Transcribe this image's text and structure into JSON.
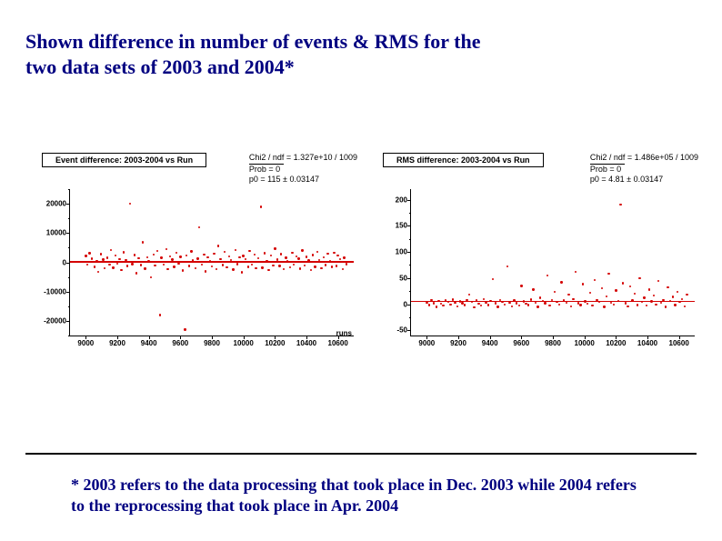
{
  "title": "Shown difference in number of events & RMS for the two data sets of 2003 and 2004*",
  "footnote": "* 2003 refers to the data processing that took place in Dec. 2003 while 2004 refers to the reprocessing that took place in Apr. 2004",
  "title_color": "#000080",
  "footnote_color": "#000080",
  "title_fontsize": 22,
  "footnote_fontsize": 18,
  "page_bg": "#ffffff",
  "rule_color": "#000000",
  "panels": [
    {
      "id": "left",
      "type": "scatter",
      "panel_title": "Event difference: 2003-2004 vs Run",
      "stats": {
        "chi2_ndf_label": "Chi2 / ndf",
        "chi2_ndf_value": "= 1.327e+10 / 1009",
        "prob_label": "Prob",
        "prob_value": "=     0",
        "p0_label": "p0",
        "p0_value": "= 115 ± 0.03147"
      },
      "xlim": [
        8900,
        10700
      ],
      "ylim": [
        -25000,
        25000
      ],
      "xticks": [
        9000,
        9200,
        9400,
        9600,
        9800,
        10000,
        10200,
        10400,
        10600
      ],
      "yticks": [
        -20000,
        -10000,
        0,
        10000,
        20000
      ],
      "yticks_minor": [
        -25000,
        -15000,
        -5000,
        5000,
        15000,
        25000
      ],
      "xlabel": "runs",
      "marker_color": "#d40000",
      "marker_size": 2.4,
      "fit_line_y": 115,
      "fit_line_color": "#d40000",
      "fit_line_width": 1.5,
      "points": [
        [
          9000,
          2200
        ],
        [
          9010,
          -800
        ],
        [
          9025,
          3100
        ],
        [
          9040,
          1200
        ],
        [
          9055,
          -1500
        ],
        [
          9070,
          500
        ],
        [
          9080,
          -3200
        ],
        [
          9095,
          2800
        ],
        [
          9110,
          900
        ],
        [
          9120,
          -2100
        ],
        [
          9135,
          1600
        ],
        [
          9150,
          -700
        ],
        [
          9160,
          4200
        ],
        [
          9175,
          -1900
        ],
        [
          9190,
          2300
        ],
        [
          9200,
          -400
        ],
        [
          9215,
          1100
        ],
        [
          9225,
          -2600
        ],
        [
          9240,
          3400
        ],
        [
          9255,
          800
        ],
        [
          9265,
          -1300
        ],
        [
          9280,
          20000
        ],
        [
          9295,
          -600
        ],
        [
          9310,
          2500
        ],
        [
          9320,
          -3700
        ],
        [
          9335,
          1400
        ],
        [
          9350,
          -900
        ],
        [
          9360,
          6800
        ],
        [
          9375,
          -2200
        ],
        [
          9390,
          1800
        ],
        [
          9400,
          300
        ],
        [
          9415,
          -5100
        ],
        [
          9430,
          2600
        ],
        [
          9440,
          -1100
        ],
        [
          9455,
          3900
        ],
        [
          9470,
          -18000
        ],
        [
          9480,
          1500
        ],
        [
          9495,
          -700
        ],
        [
          9510,
          4500
        ],
        [
          9520,
          -2400
        ],
        [
          9535,
          2100
        ],
        [
          9550,
          900
        ],
        [
          9560,
          -1600
        ],
        [
          9575,
          3200
        ],
        [
          9590,
          -500
        ],
        [
          9600,
          1900
        ],
        [
          9615,
          -2800
        ],
        [
          9630,
          -23000
        ],
        [
          9640,
          2400
        ],
        [
          9655,
          -1200
        ],
        [
          9670,
          3700
        ],
        [
          9680,
          600
        ],
        [
          9695,
          -2000
        ],
        [
          9710,
          1300
        ],
        [
          9720,
          12000
        ],
        [
          9735,
          -800
        ],
        [
          9750,
          2700
        ],
        [
          9760,
          -3100
        ],
        [
          9775,
          1700
        ],
        [
          9790,
          400
        ],
        [
          9800,
          -1400
        ],
        [
          9815,
          2900
        ],
        [
          9830,
          -2300
        ],
        [
          9840,
          5600
        ],
        [
          9855,
          1100
        ],
        [
          9870,
          -900
        ],
        [
          9880,
          3500
        ],
        [
          9895,
          -1700
        ],
        [
          9910,
          2000
        ],
        [
          9920,
          700
        ],
        [
          9935,
          -2500
        ],
        [
          9950,
          4100
        ],
        [
          9960,
          -600
        ],
        [
          9975,
          1800
        ],
        [
          9990,
          -3400
        ],
        [
          10000,
          2200
        ],
        [
          10015,
          1000
        ],
        [
          10030,
          -1500
        ],
        [
          10040,
          3800
        ],
        [
          10055,
          -800
        ],
        [
          10070,
          2600
        ],
        [
          10080,
          -2100
        ],
        [
          10095,
          1400
        ],
        [
          10110,
          19000
        ],
        [
          10120,
          -1900
        ],
        [
          10135,
          3100
        ],
        [
          10150,
          500
        ],
        [
          10160,
          -2600
        ],
        [
          10175,
          2300
        ],
        [
          10190,
          -1000
        ],
        [
          10200,
          4700
        ],
        [
          10215,
          900
        ],
        [
          10230,
          -1300
        ],
        [
          10240,
          2800
        ],
        [
          10255,
          -2400
        ],
        [
          10270,
          1600
        ],
        [
          10280,
          300
        ],
        [
          10295,
          -1800
        ],
        [
          10310,
          3300
        ],
        [
          10320,
          -700
        ],
        [
          10335,
          2100
        ],
        [
          10350,
          1200
        ],
        [
          10360,
          -2200
        ],
        [
          10375,
          4000
        ],
        [
          10390,
          -1100
        ],
        [
          10400,
          1900
        ],
        [
          10415,
          600
        ],
        [
          10430,
          -2700
        ],
        [
          10440,
          2500
        ],
        [
          10455,
          -1500
        ],
        [
          10470,
          3600
        ],
        [
          10480,
          800
        ],
        [
          10495,
          -2000
        ],
        [
          10510,
          1700
        ],
        [
          10520,
          -900
        ],
        [
          10535,
          2900
        ],
        [
          10550,
          400
        ],
        [
          10560,
          -1600
        ],
        [
          10575,
          3200
        ],
        [
          10590,
          -1200
        ],
        [
          10600,
          2400
        ],
        [
          10615,
          1000
        ],
        [
          10630,
          -2300
        ],
        [
          10640,
          1500
        ],
        [
          10655,
          -600
        ]
      ]
    },
    {
      "id": "right",
      "type": "scatter",
      "panel_title": "RMS difference: 2003-2004 vs Run",
      "stats": {
        "chi2_ndf_label": "Chi2 / ndf",
        "chi2_ndf_value": "= 1.486e+05 / 1009",
        "prob_label": "Prob",
        "prob_value": "=     0",
        "p0_label": "p0",
        "p0_value": "= 4.81 ± 0.03147"
      },
      "xlim": [
        8900,
        10700
      ],
      "ylim": [
        -60,
        220
      ],
      "xticks": [
        9000,
        9200,
        9400,
        9600,
        9800,
        10000,
        10200,
        10400,
        10600
      ],
      "yticks": [
        -50,
        0,
        50,
        100,
        150,
        200
      ],
      "yticks_minor": [
        -25,
        25,
        75,
        125,
        175
      ],
      "xlabel": "",
      "marker_color": "#d40000",
      "marker_size": 2.4,
      "fit_line_y": 4.81,
      "fit_line_color": "#d40000",
      "fit_line_width": 1.5,
      "points": [
        [
          9000,
          3
        ],
        [
          9015,
          -2
        ],
        [
          9030,
          8
        ],
        [
          9045,
          2
        ],
        [
          9060,
          -5
        ],
        [
          9075,
          6
        ],
        [
          9090,
          1
        ],
        [
          9105,
          -3
        ],
        [
          9120,
          7
        ],
        [
          9135,
          4
        ],
        [
          9150,
          -1
        ],
        [
          9165,
          9
        ],
        [
          9180,
          3
        ],
        [
          9195,
          -4
        ],
        [
          9210,
          5
        ],
        [
          9225,
          2
        ],
        [
          9240,
          -2
        ],
        [
          9255,
          8
        ],
        [
          9270,
          18
        ],
        [
          9285,
          4
        ],
        [
          9300,
          -6
        ],
        [
          9315,
          7
        ],
        [
          9330,
          1
        ],
        [
          9345,
          -3
        ],
        [
          9360,
          10
        ],
        [
          9375,
          3
        ],
        [
          9390,
          -2
        ],
        [
          9405,
          6
        ],
        [
          9420,
          48
        ],
        [
          9435,
          2
        ],
        [
          9450,
          -5
        ],
        [
          9465,
          8
        ],
        [
          9480,
          4
        ],
        [
          9495,
          -1
        ],
        [
          9510,
          72
        ],
        [
          9525,
          3
        ],
        [
          9540,
          -4
        ],
        [
          9555,
          7
        ],
        [
          9570,
          2
        ],
        [
          9585,
          -3
        ],
        [
          9600,
          35
        ],
        [
          9615,
          5
        ],
        [
          9630,
          1
        ],
        [
          9645,
          -2
        ],
        [
          9660,
          9
        ],
        [
          9675,
          28
        ],
        [
          9690,
          3
        ],
        [
          9705,
          -5
        ],
        [
          9720,
          12
        ],
        [
          9735,
          6
        ],
        [
          9750,
          2
        ],
        [
          9765,
          55
        ],
        [
          9780,
          -3
        ],
        [
          9795,
          8
        ],
        [
          9810,
          24
        ],
        [
          9825,
          4
        ],
        [
          9840,
          -1
        ],
        [
          9855,
          42
        ],
        [
          9870,
          7
        ],
        [
          9885,
          3
        ],
        [
          9900,
          18
        ],
        [
          9915,
          -4
        ],
        [
          9930,
          10
        ],
        [
          9945,
          62
        ],
        [
          9960,
          2
        ],
        [
          9975,
          -2
        ],
        [
          9990,
          38
        ],
        [
          10005,
          5
        ],
        [
          10020,
          1
        ],
        [
          10035,
          22
        ],
        [
          10050,
          -3
        ],
        [
          10065,
          46
        ],
        [
          10080,
          8
        ],
        [
          10095,
          4
        ],
        [
          10110,
          30
        ],
        [
          10125,
          -5
        ],
        [
          10140,
          15
        ],
        [
          10155,
          58
        ],
        [
          10170,
          3
        ],
        [
          10185,
          -1
        ],
        [
          10200,
          26
        ],
        [
          10215,
          6
        ],
        [
          10230,
          190
        ],
        [
          10245,
          40
        ],
        [
          10260,
          2
        ],
        [
          10275,
          -4
        ],
        [
          10290,
          34
        ],
        [
          10305,
          7
        ],
        [
          10320,
          20
        ],
        [
          10335,
          -2
        ],
        [
          10350,
          50
        ],
        [
          10365,
          4
        ],
        [
          10380,
          12
        ],
        [
          10395,
          -3
        ],
        [
          10410,
          28
        ],
        [
          10425,
          5
        ],
        [
          10440,
          16
        ],
        [
          10455,
          -1
        ],
        [
          10470,
          44
        ],
        [
          10485,
          3
        ],
        [
          10500,
          8
        ],
        [
          10515,
          -5
        ],
        [
          10530,
          32
        ],
        [
          10545,
          6
        ],
        [
          10560,
          14
        ],
        [
          10575,
          -2
        ],
        [
          10590,
          24
        ],
        [
          10605,
          4
        ],
        [
          10620,
          10
        ],
        [
          10635,
          -4
        ],
        [
          10650,
          18
        ]
      ]
    }
  ]
}
